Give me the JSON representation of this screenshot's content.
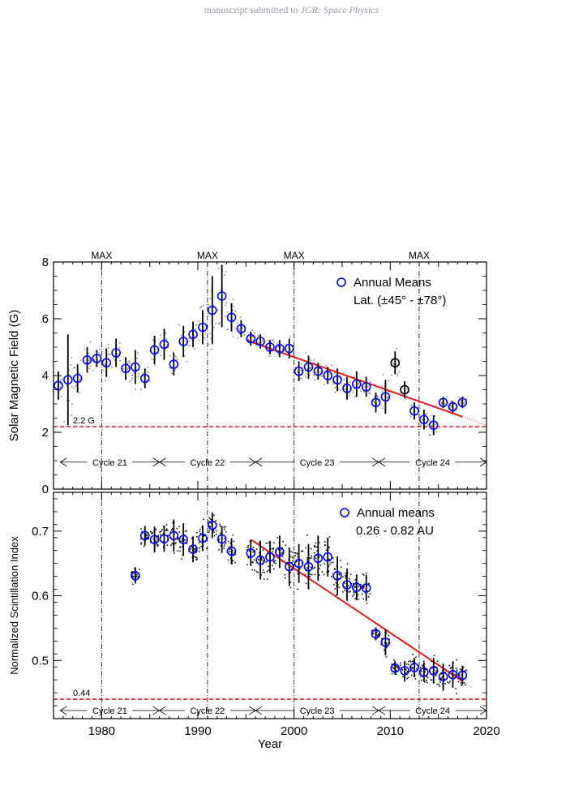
{
  "header": {
    "prefix": "manuscript submitted to ",
    "journal": "JGR: Space Physics"
  },
  "chart_data": [
    {
      "type": "scatter",
      "title": "",
      "xlabel": "",
      "ylabel": "Solar Magnetic Field (G)",
      "xlim": [
        1975,
        2020
      ],
      "ylim": [
        0,
        8
      ],
      "yticks": [
        0,
        2,
        4,
        6,
        8
      ],
      "max_markers": [
        1980,
        1991,
        2000,
        2013
      ],
      "max_label": "MAX",
      "threshold": {
        "value": 2.2,
        "label": "2.2 G",
        "color": "#e41a1c"
      },
      "cycles": [
        {
          "label": "Cycle 21",
          "start": 1975.7,
          "end": 1986.0
        },
        {
          "label": "Cycle 22",
          "start": 1986.0,
          "end": 1996.0
        },
        {
          "label": "Cycle 23",
          "start": 1996.0,
          "end": 2008.8
        },
        {
          "label": "Cycle 24",
          "start": 2008.8,
          "end": 2020.0
        }
      ],
      "legend": {
        "marker_label": "Annual Means",
        "note": "Lat. (±45° - ±78°)",
        "position": "top-right"
      },
      "series": [
        {
          "name": "Annual Means",
          "color": "#0000ff",
          "points": [
            {
              "x": 1975.5,
              "y": 3.65,
              "err": 0.5
            },
            {
              "x": 1976.5,
              "y": 3.85,
              "err": 1.6
            },
            {
              "x": 1977.5,
              "y": 3.9,
              "err": 0.5
            },
            {
              "x": 1978.5,
              "y": 4.55,
              "err": 0.45
            },
            {
              "x": 1979.5,
              "y": 4.6,
              "err": 0.3
            },
            {
              "x": 1980.5,
              "y": 4.45,
              "err": 0.5
            },
            {
              "x": 1981.5,
              "y": 4.8,
              "err": 0.5
            },
            {
              "x": 1982.5,
              "y": 4.25,
              "err": 0.4
            },
            {
              "x": 1983.5,
              "y": 4.3,
              "err": 0.6
            },
            {
              "x": 1984.5,
              "y": 3.9,
              "err": 0.35
            },
            {
              "x": 1985.5,
              "y": 4.9,
              "err": 0.5
            },
            {
              "x": 1986.5,
              "y": 5.1,
              "err": 0.55
            },
            {
              "x": 1987.5,
              "y": 4.4,
              "err": 0.4
            },
            {
              "x": 1988.5,
              "y": 5.2,
              "err": 0.55
            },
            {
              "x": 1989.5,
              "y": 5.45,
              "err": 0.45
            },
            {
              "x": 1990.5,
              "y": 5.7,
              "err": 0.6
            },
            {
              "x": 1991.5,
              "y": 6.3,
              "err": 1.2
            },
            {
              "x": 1992.5,
              "y": 6.8,
              "err": 1.1
            },
            {
              "x": 1993.5,
              "y": 6.05,
              "err": 0.5
            },
            {
              "x": 1994.5,
              "y": 5.65,
              "err": 0.3
            },
            {
              "x": 1995.5,
              "y": 5.3,
              "err": 0.25
            },
            {
              "x": 1996.5,
              "y": 5.2,
              "err": 0.25
            },
            {
              "x": 1997.5,
              "y": 5.0,
              "err": 0.25
            },
            {
              "x": 1998.5,
              "y": 4.95,
              "err": 0.3
            },
            {
              "x": 1999.5,
              "y": 4.95,
              "err": 0.35
            },
            {
              "x": 2000.5,
              "y": 4.15,
              "err": 0.35
            },
            {
              "x": 2001.5,
              "y": 4.3,
              "err": 0.4
            },
            {
              "x": 2002.5,
              "y": 4.15,
              "err": 0.3
            },
            {
              "x": 2003.5,
              "y": 4.0,
              "err": 0.3
            },
            {
              "x": 2004.5,
              "y": 3.85,
              "err": 0.4
            },
            {
              "x": 2005.5,
              "y": 3.55,
              "err": 0.4
            },
            {
              "x": 2006.5,
              "y": 3.7,
              "err": 0.45
            },
            {
              "x": 2007.5,
              "y": 3.6,
              "err": 0.35
            },
            {
              "x": 2008.5,
              "y": 3.05,
              "err": 0.35
            },
            {
              "x": 2009.5,
              "y": 3.25,
              "err": 0.6
            },
            {
              "x": 2012.5,
              "y": 2.75,
              "err": 0.3
            },
            {
              "x": 2013.5,
              "y": 2.45,
              "err": 0.35
            },
            {
              "x": 2014.5,
              "y": 2.25,
              "err": 0.35
            },
            {
              "x": 2015.5,
              "y": 3.05,
              "err": 0.2
            },
            {
              "x": 2016.5,
              "y": 2.9,
              "err": 0.2
            },
            {
              "x": 2017.5,
              "y": 3.05,
              "err": 0.2
            }
          ]
        },
        {
          "name": "",
          "color": "#000000",
          "points": [
            {
              "x": 2010.5,
              "y": 4.45,
              "err": 0.4
            },
            {
              "x": 2011.5,
              "y": 3.5,
              "err": 0.3
            }
          ]
        }
      ],
      "trend": {
        "color": "#e41a1c",
        "x": [
          1995,
          2017.5
        ],
        "y": [
          5.25,
          2.55
        ],
        "dotted_to": [
          2020,
          2.25
        ]
      }
    },
    {
      "type": "scatter",
      "title": "",
      "xlabel": "Year",
      "ylabel": "Normalized Scintillation Index",
      "xlim": [
        1975,
        2020
      ],
      "ylim": [
        0.41,
        0.76
      ],
      "yticks": [
        0.5,
        0.6,
        0.7
      ],
      "xticks": [
        1980,
        1990,
        2000,
        2010,
        2020
      ],
      "max_markers": [
        1980,
        1991,
        2000,
        2013
      ],
      "threshold": {
        "value": 0.44,
        "label": "0.44",
        "color": "#e41a1c"
      },
      "cycles": [
        {
          "label": "Cycle 21",
          "start": 1975.7,
          "end": 1986.0
        },
        {
          "label": "Cycle 22",
          "start": 1986.0,
          "end": 1996.0
        },
        {
          "label": "Cycle 23",
          "start": 1996.0,
          "end": 2008.8
        },
        {
          "label": "Cycle 24",
          "start": 2008.8,
          "end": 2020.0
        }
      ],
      "legend": {
        "marker_label": "Annual means",
        "note": "0.26 - 0.82 AU",
        "position": "top-right"
      },
      "series": [
        {
          "name": "Annual means",
          "color": "#0000ff",
          "points": [
            {
              "x": 1983.5,
              "y": 0.631,
              "err": 0.012
            },
            {
              "x": 1984.5,
              "y": 0.693,
              "err": 0.015
            },
            {
              "x": 1985.5,
              "y": 0.687,
              "err": 0.02
            },
            {
              "x": 1986.5,
              "y": 0.688,
              "err": 0.02
            },
            {
              "x": 1987.5,
              "y": 0.693,
              "err": 0.025
            },
            {
              "x": 1988.5,
              "y": 0.687,
              "err": 0.025
            },
            {
              "x": 1989.5,
              "y": 0.672,
              "err": 0.02
            },
            {
              "x": 1990.5,
              "y": 0.689,
              "err": 0.02
            },
            {
              "x": 1991.5,
              "y": 0.709,
              "err": 0.02
            },
            {
              "x": 1992.5,
              "y": 0.688,
              "err": 0.02
            },
            {
              "x": 1993.5,
              "y": 0.669,
              "err": 0.02
            },
            {
              "x": 1995.5,
              "y": 0.666,
              "err": 0.02
            },
            {
              "x": 1996.5,
              "y": 0.655,
              "err": 0.03
            },
            {
              "x": 1997.5,
              "y": 0.66,
              "err": 0.025
            },
            {
              "x": 1998.5,
              "y": 0.668,
              "err": 0.025
            },
            {
              "x": 1999.5,
              "y": 0.645,
              "err": 0.03
            },
            {
              "x": 2000.5,
              "y": 0.65,
              "err": 0.03
            },
            {
              "x": 2001.5,
              "y": 0.645,
              "err": 0.035
            },
            {
              "x": 2002.5,
              "y": 0.658,
              "err": 0.035
            },
            {
              "x": 2003.5,
              "y": 0.66,
              "err": 0.03
            },
            {
              "x": 2004.5,
              "y": 0.631,
              "err": 0.03
            },
            {
              "x": 2005.5,
              "y": 0.617,
              "err": 0.025
            },
            {
              "x": 2006.5,
              "y": 0.613,
              "err": 0.02
            },
            {
              "x": 2007.5,
              "y": 0.612,
              "err": 0.02
            },
            {
              "x": 2008.5,
              "y": 0.541,
              "err": 0.01
            },
            {
              "x": 2009.5,
              "y": 0.528,
              "err": 0.02
            },
            {
              "x": 2010.5,
              "y": 0.488,
              "err": 0.01
            },
            {
              "x": 2011.5,
              "y": 0.484,
              "err": 0.015
            },
            {
              "x": 2012.5,
              "y": 0.489,
              "err": 0.015
            },
            {
              "x": 2013.5,
              "y": 0.482,
              "err": 0.015
            },
            {
              "x": 2014.5,
              "y": 0.484,
              "err": 0.02
            },
            {
              "x": 2015.5,
              "y": 0.475,
              "err": 0.02
            },
            {
              "x": 2016.5,
              "y": 0.478,
              "err": 0.02
            },
            {
              "x": 2017.5,
              "y": 0.477,
              "err": 0.015
            }
          ]
        }
      ],
      "trend": {
        "color": "#e41a1c",
        "x": [
          1995.5,
          2017.5
        ],
        "y": [
          0.687,
          0.468
        ],
        "dotted_to": [
          2018.5,
          0.458
        ]
      }
    }
  ]
}
